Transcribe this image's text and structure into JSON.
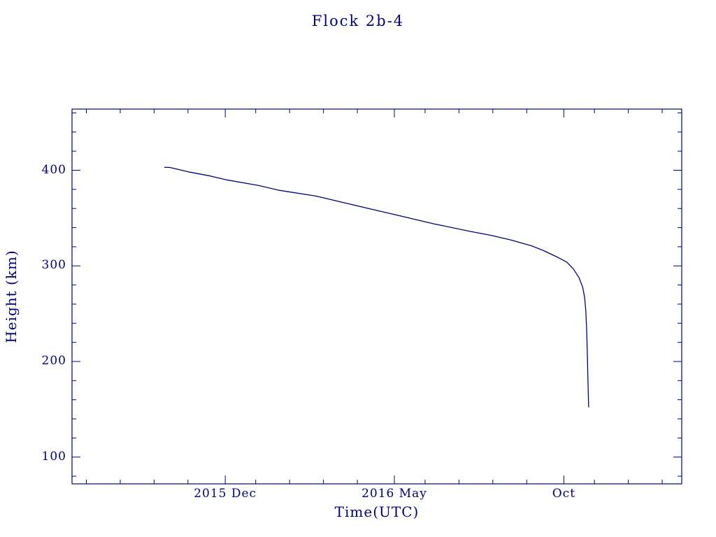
{
  "page": {
    "background": "#ffffff",
    "accent_color": "#000080"
  },
  "chart_data": {
    "type": "line",
    "title": "Flock 2b-4",
    "xlabel": "Time(UTC)",
    "ylabel": "Height (km)",
    "xlim": [
      2015.54,
      2017.04
    ],
    "ylim": [
      72,
      464
    ],
    "grid": false,
    "legend": "none",
    "frame_color": "#000080",
    "line_color": "#000080",
    "xticks": [
      {
        "value": 2015.917,
        "label": "2015 Dec"
      },
      {
        "value": 2016.333,
        "label": "2016 May"
      },
      {
        "value": 2016.75,
        "label": "Oct"
      }
    ],
    "xminor_step_years": 0.083333,
    "yticks": [
      {
        "value": 100,
        "label": "100"
      },
      {
        "value": 200,
        "label": "200"
      },
      {
        "value": 300,
        "label": "300"
      },
      {
        "value": 400,
        "label": "400"
      }
    ],
    "yminor_step": 20,
    "series": [
      {
        "name": "Flock 2b-4 orbital height",
        "points": [
          [
            2015.767,
            403
          ],
          [
            2015.78,
            403
          ],
          [
            2015.8,
            401
          ],
          [
            2015.83,
            398
          ],
          [
            2015.88,
            394
          ],
          [
            2015.92,
            390
          ],
          [
            2016.0,
            384
          ],
          [
            2016.05,
            379
          ],
          [
            2016.14,
            373
          ],
          [
            2016.22,
            365
          ],
          [
            2016.28,
            359
          ],
          [
            2016.34,
            353
          ],
          [
            2016.43,
            344
          ],
          [
            2016.52,
            336
          ],
          [
            2016.57,
            332
          ],
          [
            2016.62,
            327
          ],
          [
            2016.67,
            321
          ],
          [
            2016.7,
            316
          ],
          [
            2016.73,
            310
          ],
          [
            2016.757,
            304
          ],
          [
            2016.773,
            297
          ],
          [
            2016.787,
            288
          ],
          [
            2016.796,
            278
          ],
          [
            2016.801,
            267
          ],
          [
            2016.804,
            253
          ],
          [
            2016.806,
            234
          ],
          [
            2016.808,
            205
          ],
          [
            2016.809,
            185
          ],
          [
            2016.81,
            168
          ],
          [
            2016.811,
            152
          ]
        ]
      }
    ]
  }
}
